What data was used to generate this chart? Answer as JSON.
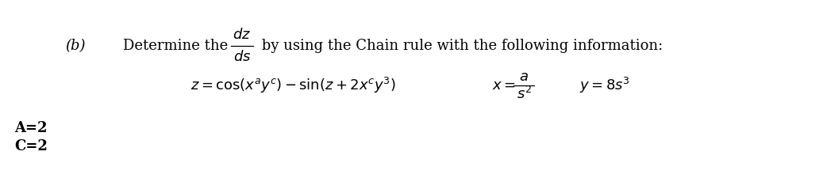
{
  "bg_color": "#ffffff",
  "text_color": "#000000",
  "part_b": "(b)",
  "intro_text": "Determine the",
  "by_text": " by using the Chain rule with the following information:",
  "equation_left": "$z = \\cos (x^{a}y^{c}) - \\sin (z + 2x^{c}y^{3})$",
  "x_label": "$x = $",
  "x_num": "$a$",
  "x_den": "$s^2$",
  "y_expr": "$y = 8s^{3}$",
  "ac_line1": "A=2",
  "ac_line2": "C=2",
  "frac_num": "$dz$",
  "frac_den": "$ds$",
  "fs_main": 13,
  "fs_eq": 13,
  "fs_ac": 13
}
